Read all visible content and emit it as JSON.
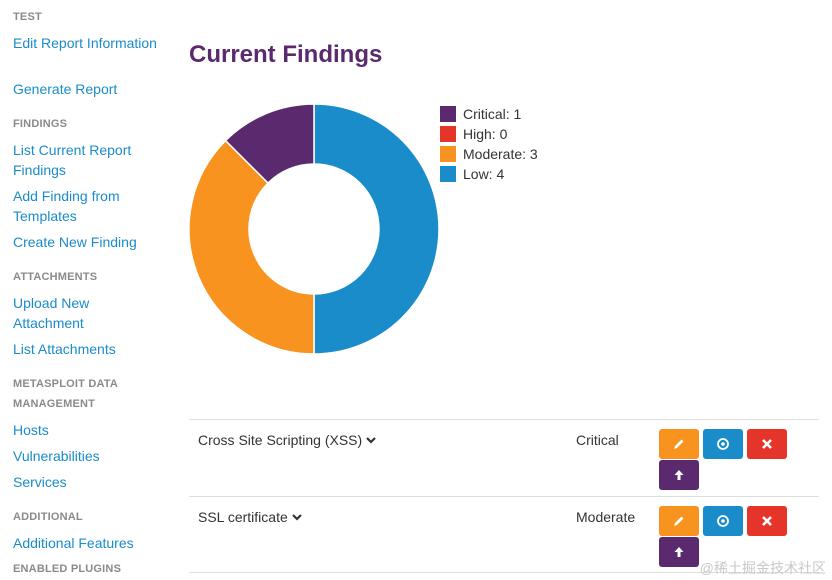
{
  "sidebar": {
    "sections": [
      {
        "heading": "TEST",
        "links": [
          "Edit Report Information",
          "Generate Report"
        ]
      },
      {
        "heading": "FINDINGS",
        "links": [
          "List Current Report Findings",
          "Add Finding from Templates",
          "Create New Finding"
        ]
      },
      {
        "heading": "ATTACHMENTS",
        "links": [
          "Upload New Attachment",
          "List Attachments"
        ]
      },
      {
        "heading": "METASPLOIT DATA MANAGEMENT",
        "links": [
          "Hosts",
          "Vulnerabilities",
          "Services"
        ]
      },
      {
        "heading": "ADDITIONAL",
        "links": [
          "Additional Features"
        ]
      },
      {
        "heading": "ENABLED PLUGINS",
        "links": []
      }
    ]
  },
  "main": {
    "title": "Current Findings"
  },
  "chart_data": {
    "type": "pie",
    "categories": [
      "Critical",
      "High",
      "Moderate",
      "Low"
    ],
    "values": [
      1,
      0,
      3,
      4
    ],
    "legend_labels": [
      "Critical: 1",
      "High: 0",
      "Moderate: 3",
      "Low: 4"
    ],
    "colors": [
      "#5b2a6e",
      "#e5352b",
      "#f7931e",
      "#1a8cc9"
    ],
    "legend": "right"
  },
  "findings": [
    {
      "title": "Cross Site Scripting (XSS)",
      "severity": "Critical"
    },
    {
      "title": "SSL certificate",
      "severity": "Moderate"
    }
  ],
  "colors": {
    "accent_purple": "#5b2a6e",
    "link_blue": "#1a8cc9",
    "edit_orange": "#f7931e",
    "delete_red": "#e5352b"
  },
  "icons": {
    "edit": "pencil-icon",
    "view": "eye-icon",
    "delete": "close-icon",
    "upload": "arrow-up-icon",
    "expand": "chevron-down-icon"
  },
  "watermark": "@稀土掘金技术社区"
}
